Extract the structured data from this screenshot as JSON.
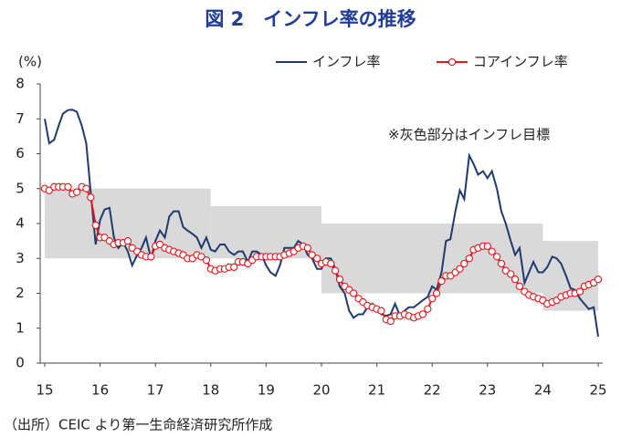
{
  "chart_data": {
    "type": "line",
    "title": "図 2　インフレ率の推移",
    "y_label": "(%)",
    "annotation": "※灰色部分はインフレ目標",
    "source": "（出所）CEIC より第一生命経済研究所作成",
    "xlim": [
      15,
      25
    ],
    "xticks": [
      15,
      16,
      17,
      18,
      19,
      20,
      21,
      22,
      23,
      24,
      25
    ],
    "ylim": [
      0,
      8
    ],
    "yticks": [
      0,
      1,
      2,
      3,
      4,
      5,
      6,
      7,
      8
    ],
    "band_color": "#d9d9d9",
    "target_band": [
      {
        "start": 15,
        "end": 18,
        "lower": 3,
        "upper": 5
      },
      {
        "start": 18,
        "end": 20,
        "lower": 3,
        "upper": 4.5
      },
      {
        "start": 20,
        "end": 24,
        "lower": 2,
        "upper": 4
      },
      {
        "start": 24,
        "end": 25,
        "lower": 1.5,
        "upper": 3.5
      }
    ],
    "x": [
      15,
      15.08,
      15.17,
      15.25,
      15.33,
      15.42,
      15.5,
      15.58,
      15.67,
      15.75,
      15.83,
      15.92,
      16,
      16.08,
      16.17,
      16.25,
      16.33,
      16.42,
      16.5,
      16.58,
      16.67,
      16.75,
      16.83,
      16.92,
      17,
      17.08,
      17.17,
      17.25,
      17.33,
      17.42,
      17.5,
      17.58,
      17.67,
      17.75,
      17.83,
      17.92,
      18,
      18.08,
      18.17,
      18.25,
      18.33,
      18.42,
      18.5,
      18.58,
      18.67,
      18.75,
      18.83,
      18.92,
      19,
      19.08,
      19.17,
      19.25,
      19.33,
      19.42,
      19.5,
      19.58,
      19.67,
      19.75,
      19.83,
      19.92,
      20,
      20.08,
      20.17,
      20.25,
      20.33,
      20.42,
      20.5,
      20.58,
      20.67,
      20.75,
      20.83,
      20.92,
      21,
      21.08,
      21.17,
      21.25,
      21.33,
      21.42,
      21.5,
      21.58,
      21.67,
      21.75,
      21.83,
      21.92,
      22,
      22.08,
      22.17,
      22.25,
      22.33,
      22.42,
      22.5,
      22.58,
      22.67,
      22.75,
      22.83,
      22.92,
      23,
      23.08,
      23.17,
      23.25,
      23.33,
      23.42,
      23.5,
      23.58,
      23.67,
      23.75,
      23.83,
      23.92,
      24,
      24.08,
      24.17,
      24.25,
      24.33,
      24.42,
      24.5,
      24.58,
      24.67,
      24.75,
      24.83,
      24.92,
      25
    ],
    "series": [
      {
        "name": "インフレ率",
        "color": "#1f3a6e",
        "marker": false,
        "values": [
          7.0,
          6.3,
          6.4,
          6.8,
          7.15,
          7.25,
          7.26,
          7.2,
          6.8,
          6.3,
          4.9,
          3.4,
          4.1,
          4.4,
          4.45,
          3.6,
          3.3,
          3.45,
          3.2,
          2.8,
          3.1,
          3.3,
          3.6,
          3.0,
          3.5,
          3.8,
          3.6,
          4.2,
          4.35,
          4.35,
          3.9,
          3.8,
          3.7,
          3.6,
          3.3,
          3.6,
          3.25,
          3.2,
          3.4,
          3.4,
          3.2,
          3.1,
          3.2,
          3.2,
          2.9,
          3.2,
          3.2,
          3.1,
          2.8,
          2.6,
          2.5,
          2.8,
          3.3,
          3.3,
          3.3,
          3.5,
          3.4,
          3.1,
          3.0,
          2.7,
          2.7,
          3.0,
          3.0,
          2.7,
          2.2,
          2.0,
          1.5,
          1.3,
          1.4,
          1.4,
          1.6,
          1.7,
          1.55,
          1.4,
          1.35,
          1.4,
          1.7,
          1.35,
          1.5,
          1.6,
          1.6,
          1.7,
          1.8,
          1.9,
          2.2,
          2.1,
          2.6,
          3.5,
          3.55,
          4.35,
          4.95,
          4.7,
          5.95,
          5.7,
          5.4,
          5.5,
          5.3,
          5.5,
          5.0,
          4.35,
          4.0,
          3.5,
          3.1,
          3.3,
          2.3,
          2.6,
          2.9,
          2.6,
          2.6,
          2.75,
          3.05,
          3.0,
          2.85,
          2.5,
          2.15,
          2.1,
          1.85,
          1.7,
          1.55,
          1.6,
          0.76
        ]
      },
      {
        "name": "コアインフレ率",
        "color": "#e8141b",
        "marker": true,
        "values": [
          5.0,
          4.95,
          5.05,
          5.05,
          5.05,
          5.05,
          4.85,
          4.9,
          5.05,
          5.0,
          4.75,
          3.95,
          3.6,
          3.6,
          3.5,
          3.4,
          3.45,
          3.45,
          3.5,
          3.3,
          3.2,
          3.1,
          3.05,
          3.05,
          3.35,
          3.4,
          3.3,
          3.25,
          3.2,
          3.15,
          3.1,
          3.0,
          3.0,
          3.1,
          3.05,
          2.95,
          2.7,
          2.65,
          2.7,
          2.7,
          2.75,
          2.75,
          2.9,
          2.9,
          2.85,
          2.95,
          3.05,
          3.05,
          3.05,
          3.05,
          3.05,
          3.05,
          3.1,
          3.15,
          3.2,
          3.3,
          3.35,
          3.3,
          3.1,
          3.0,
          2.85,
          2.9,
          2.85,
          2.65,
          2.4,
          2.2,
          2.1,
          2.0,
          1.85,
          1.75,
          1.65,
          1.6,
          1.55,
          1.5,
          1.25,
          1.2,
          1.35,
          1.35,
          1.4,
          1.35,
          1.3,
          1.35,
          1.4,
          1.55,
          1.85,
          2.0,
          2.35,
          2.5,
          2.5,
          2.6,
          2.7,
          2.85,
          3.0,
          3.25,
          3.3,
          3.35,
          3.35,
          3.2,
          3.05,
          2.85,
          2.65,
          2.55,
          2.4,
          2.2,
          2.05,
          1.95,
          1.9,
          1.85,
          1.8,
          1.7,
          1.75,
          1.8,
          1.9,
          1.95,
          2.0,
          2.0,
          2.05,
          2.2,
          2.25,
          2.3,
          2.4
        ]
      }
    ]
  }
}
